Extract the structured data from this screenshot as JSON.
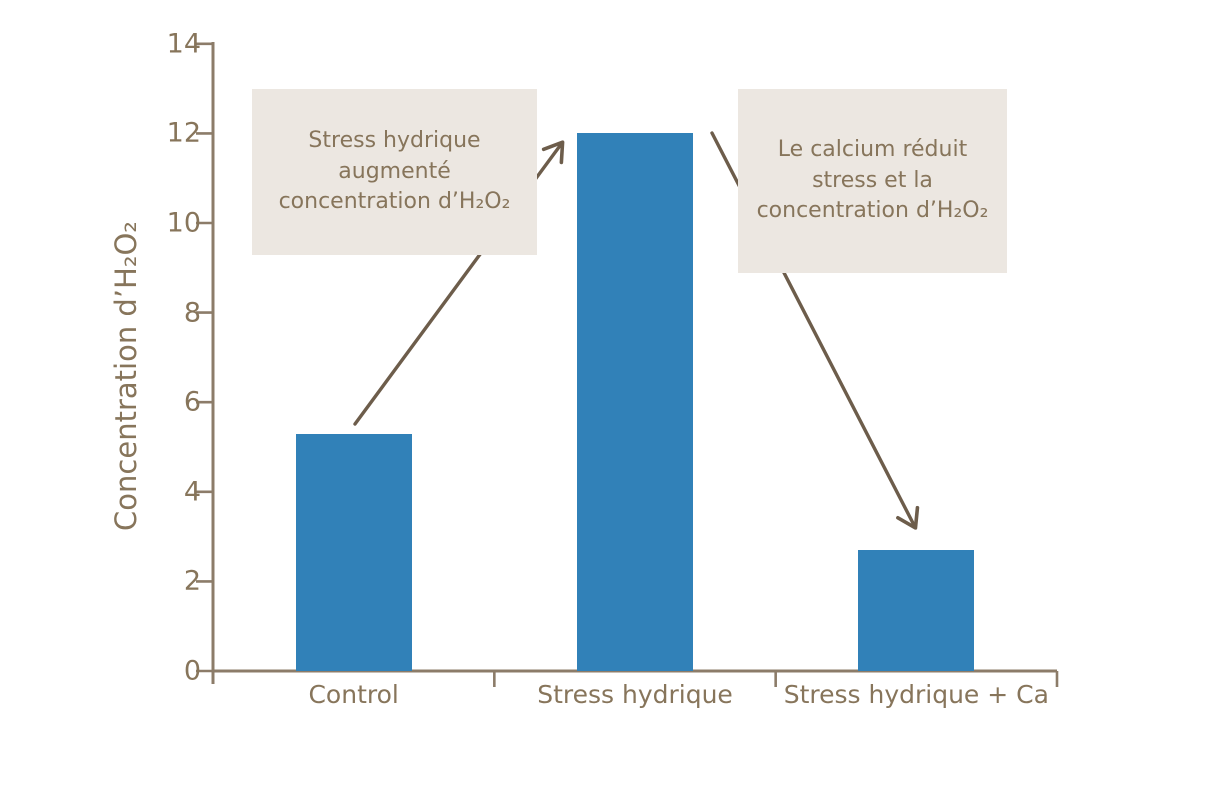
{
  "chart_data": {
    "type": "bar",
    "categories": [
      "Control",
      "Stress hydrique",
      "Stress hydrique + Ca"
    ],
    "values": [
      5.3,
      12,
      2.7
    ],
    "title": "",
    "xlabel": "",
    "ylabel": "Concentration d’H₂O₂",
    "ylim": [
      0,
      14
    ],
    "yticks": [
      0,
      2,
      4,
      6,
      8,
      10,
      12,
      14
    ],
    "grid": false,
    "legend": "none",
    "bar_color": "#3181b8",
    "axis_color": "#8c7c69",
    "text_color": "#87755b"
  },
  "annotations": [
    {
      "id": "increase-note",
      "lines": [
        "Stress hydrique",
        "augmenté",
        "concentration d’H₂O₂"
      ],
      "bg_color": "#ece7e1",
      "points_from": "Control",
      "points_to": "Stress hydrique"
    },
    {
      "id": "decrease-note",
      "lines": [
        "Le calcium réduit",
        "stress et la",
        "concentration d’H₂O₂"
      ],
      "bg_color": "#ece7e1",
      "points_from": "Stress hydrique",
      "points_to": "Stress hydrique + Ca"
    }
  ],
  "colors": {
    "arrow": "#6d5d4b",
    "background": "#ffffff"
  }
}
